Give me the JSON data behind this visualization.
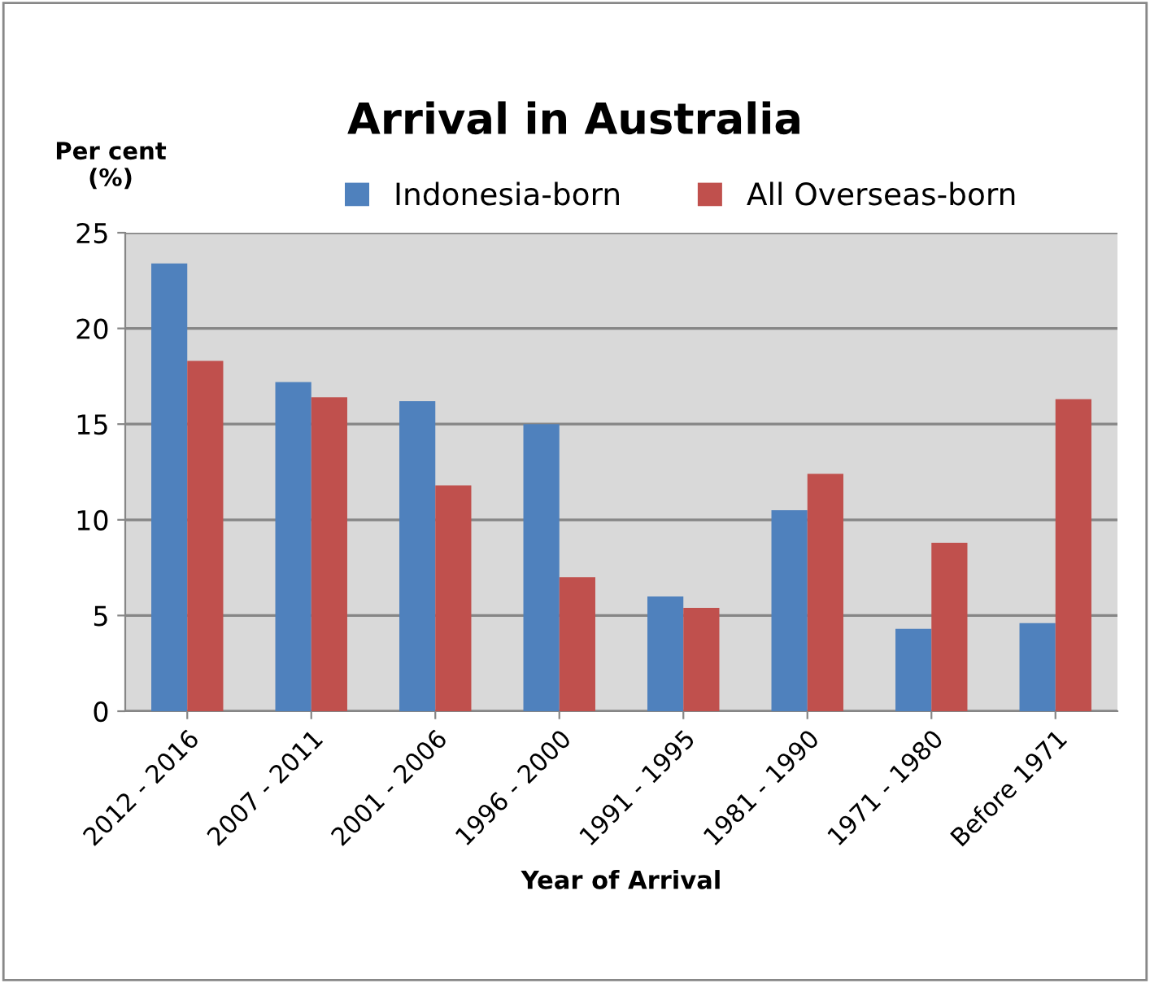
{
  "chart_data": {
    "type": "bar",
    "title": "Arrival in Australia",
    "xlabel": "Year of Arrival",
    "ylabel": "Per cent\n(%)",
    "categories": [
      "2012 - 2016",
      "2007 - 2011",
      "2001 - 2006",
      "1996 - 2000",
      "1991 - 1995",
      "1981 - 1990",
      "1971 - 1980",
      "Before 1971"
    ],
    "series": [
      {
        "name": "Indonesia-born",
        "color": "#4f81bd",
        "values": [
          23.4,
          17.2,
          16.2,
          15.0,
          6.0,
          10.5,
          4.3,
          4.6
        ]
      },
      {
        "name": "All Overseas-born",
        "color": "#c0504d",
        "values": [
          18.3,
          16.4,
          11.8,
          7.0,
          5.4,
          12.4,
          8.8,
          16.3
        ]
      }
    ],
    "ylim": [
      0,
      25
    ],
    "yticks": [
      0,
      5,
      10,
      15,
      20,
      25
    ],
    "grid": "y",
    "legend": "top"
  }
}
